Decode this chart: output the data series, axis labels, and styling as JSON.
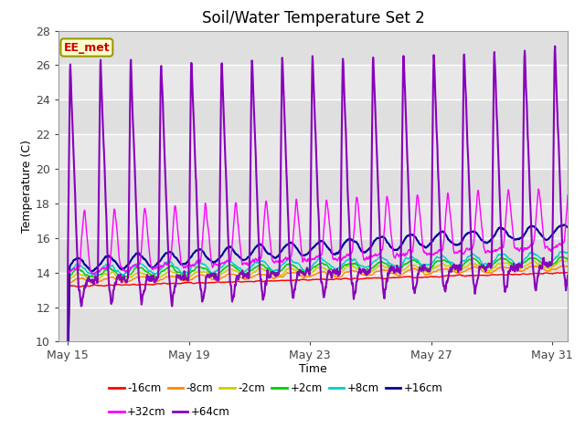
{
  "title": "Soil/Water Temperature Set 2",
  "xlabel": "Time",
  "ylabel": "Temperature (C)",
  "ylim": [
    10,
    28
  ],
  "yticks": [
    10,
    12,
    14,
    16,
    18,
    20,
    22,
    24,
    26,
    28
  ],
  "background_color": "#ffffff",
  "plot_bg_light": "#e8e8e8",
  "plot_bg_dark": "#d4d4d4",
  "annotation_text": "EE_met",
  "annotation_bg": "#ffffcc",
  "annotation_border": "#999900",
  "annotation_text_color": "#cc0000",
  "series": [
    {
      "label": "-16cm",
      "color": "#ff0000",
      "linewidth": 1.0
    },
    {
      "label": "-8cm",
      "color": "#ff8800",
      "linewidth": 1.0
    },
    {
      "label": "-2cm",
      "color": "#cccc00",
      "linewidth": 1.0
    },
    {
      "label": "+2cm",
      "color": "#00cc00",
      "linewidth": 1.0
    },
    {
      "label": "+8cm",
      "color": "#00cccc",
      "linewidth": 1.0
    },
    {
      "label": "+16cm",
      "color": "#000099",
      "linewidth": 1.5
    },
    {
      "label": "+32cm",
      "color": "#ff00ff",
      "linewidth": 1.0
    },
    {
      "label": "+64cm",
      "color": "#8800bb",
      "linewidth": 1.5
    }
  ],
  "xtick_labels": [
    "May 15",
    "May 19",
    "May 23",
    "May 27",
    "May 31"
  ],
  "xtick_positions": [
    0,
    4,
    8,
    12,
    16
  ],
  "n_days": 17,
  "n_points": 1700,
  "figsize": [
    6.4,
    4.8
  ],
  "dpi": 100
}
